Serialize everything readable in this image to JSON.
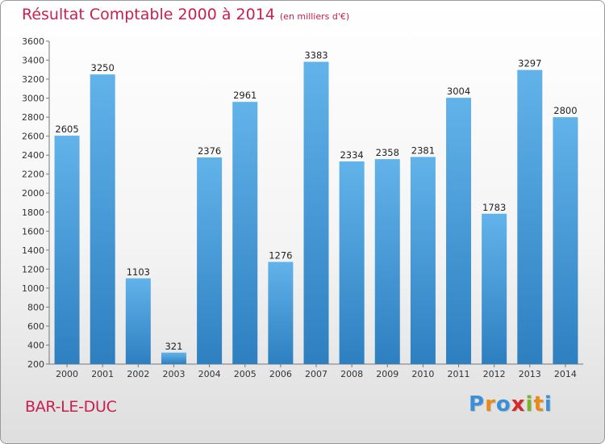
{
  "title": "Résultat Comptable 2000 à 2014",
  "subtitle": "(en milliers d'€)",
  "place": "BAR-LE-DUC",
  "logo": {
    "letters": [
      "P",
      "r",
      "o",
      "x",
      "i",
      "t",
      "i"
    ],
    "colors": [
      "#3b8fd6",
      "#e88a1a",
      "#3b8fd6",
      "#d62a2a",
      "#7ab52b",
      "#e88a1a",
      "#3b8fd6"
    ]
  },
  "colors": {
    "accent": "#c8204f",
    "bar_top": "#62b3ea",
    "bar_bottom": "#2d7fc0"
  },
  "chart_data": {
    "type": "bar",
    "categories": [
      "2000",
      "2001",
      "2002",
      "2003",
      "2004",
      "2005",
      "2006",
      "2007",
      "2008",
      "2009",
      "2010",
      "2011",
      "2012",
      "2013",
      "2014"
    ],
    "values": [
      2605,
      3250,
      1103,
      321,
      2376,
      2961,
      1276,
      3383,
      2334,
      2358,
      2381,
      3004,
      1783,
      3297,
      2800
    ],
    "title": "Résultat Comptable 2000 à 2014",
    "subtitle": "(en milliers d'€)",
    "xlabel": "",
    "ylabel": "",
    "ylim": [
      200,
      3600
    ],
    "yticks": [
      200,
      400,
      600,
      800,
      1000,
      1200,
      1400,
      1600,
      1800,
      2000,
      2200,
      2400,
      2600,
      2800,
      3000,
      3200,
      3400,
      3600
    ],
    "grid": false,
    "legend": "none"
  }
}
